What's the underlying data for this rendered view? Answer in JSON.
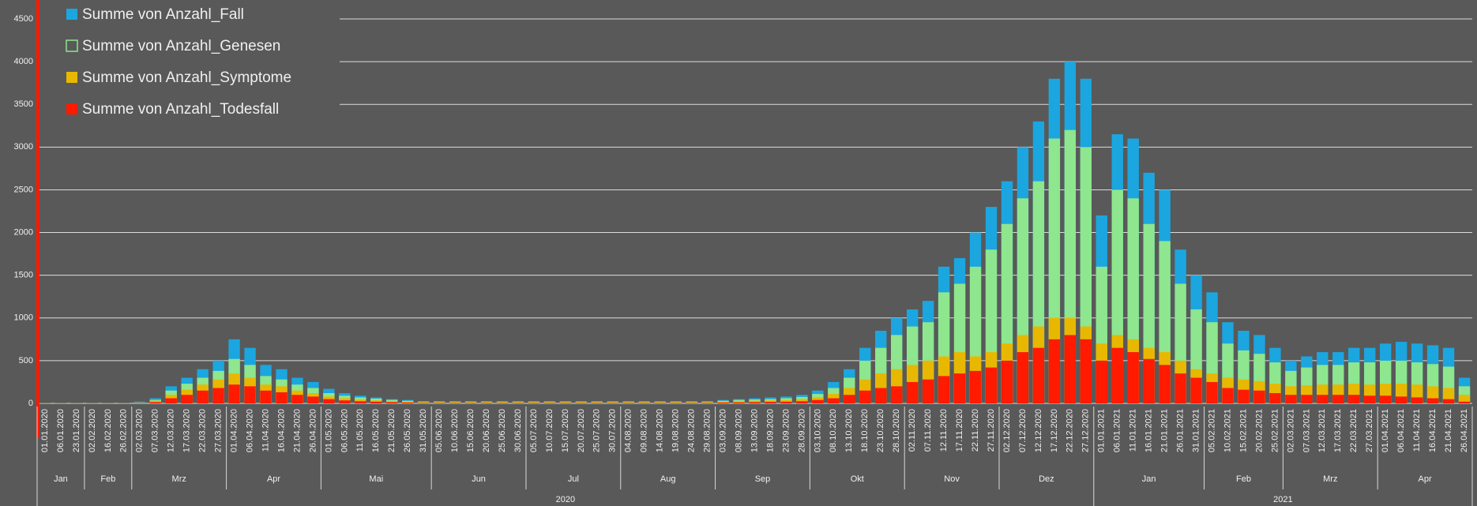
{
  "chart_data": {
    "type": "bar",
    "categories": [
      "01.01.2020",
      "06.01.2020",
      "23.01.2020",
      "02.02.2020",
      "16.02.2020",
      "26.02.2020",
      "02.03.2020",
      "07.03.2020",
      "12.03.2020",
      "17.03.2020",
      "22.03.2020",
      "27.03.2020",
      "01.04.2020",
      "06.04.2020",
      "11.04.2020",
      "16.04.2020",
      "21.04.2020",
      "26.04.2020",
      "01.05.2020",
      "06.05.2020",
      "11.05.2020",
      "16.05.2020",
      "21.05.2020",
      "26.05.2020",
      "31.05.2020",
      "05.06.2020",
      "10.06.2020",
      "15.06.2020",
      "20.06.2020",
      "25.06.2020",
      "30.06.2020",
      "05.07.2020",
      "10.07.2020",
      "15.07.2020",
      "20.07.2020",
      "25.07.2020",
      "30.07.2020",
      "04.08.2020",
      "09.08.2020",
      "14.08.2020",
      "19.08.2020",
      "24.08.2020",
      "29.08.2020",
      "03.09.2020",
      "08.09.2020",
      "13.09.2020",
      "18.09.2020",
      "23.09.2020",
      "28.09.2020",
      "03.10.2020",
      "08.10.2020",
      "13.10.2020",
      "18.10.2020",
      "23.10.2020",
      "28.10.2020",
      "02.11.2020",
      "07.11.2020",
      "12.11.2020",
      "17.11.2020",
      "22.11.2020",
      "27.11.2020",
      "02.12.2020",
      "07.12.2020",
      "12.12.2020",
      "17.12.2020",
      "22.12.2020",
      "27.12.2020",
      "01.01.2021",
      "06.01.2021",
      "11.01.2021",
      "16.01.2021",
      "21.01.2021",
      "26.01.2021",
      "31.01.2021",
      "05.02.2021",
      "10.02.2021",
      "15.02.2021",
      "20.02.2021",
      "25.02.2021",
      "02.03.2021",
      "07.03.2021",
      "12.03.2021",
      "17.03.2021",
      "22.03.2021",
      "27.03.2021",
      "01.04.2021",
      "06.04.2021",
      "11.04.2021",
      "16.04.2021",
      "21.04.2021",
      "26.04.2021"
    ],
    "months": [
      "Jan",
      "Feb",
      "Mrz",
      "Apr",
      "Mai",
      "Jun",
      "Jul",
      "Aug",
      "Sep",
      "Okt",
      "Nov",
      "Dez",
      "Jan",
      "Feb",
      "Mrz",
      "Apr"
    ],
    "years": [
      "2020",
      "2021"
    ],
    "series": [
      {
        "name": "Summe von Anzahl_Fall",
        "color": "#1ba6e0",
        "values": [
          5,
          5,
          5,
          5,
          5,
          5,
          20,
          60,
          200,
          300,
          400,
          500,
          750,
          650,
          450,
          400,
          300,
          250,
          170,
          120,
          90,
          70,
          50,
          40,
          25,
          25,
          25,
          25,
          25,
          25,
          25,
          25,
          25,
          25,
          25,
          25,
          25,
          25,
          25,
          25,
          25,
          25,
          25,
          40,
          50,
          60,
          70,
          80,
          100,
          150,
          250,
          400,
          650,
          850,
          1000,
          1100,
          1200,
          1600,
          1700,
          2000,
          2300,
          2600,
          3000,
          3300,
          3800,
          4000,
          3800,
          2200,
          3150,
          3100,
          2700,
          2500,
          1800,
          1500,
          1300,
          950,
          850,
          800,
          650,
          500,
          550,
          600,
          600,
          650,
          650,
          700,
          720,
          700,
          680,
          650,
          300
        ]
      },
      {
        "name": "Summe von Anzahl_Genesen",
        "color": "#8ee68e",
        "values": [
          3,
          3,
          3,
          3,
          3,
          3,
          10,
          40,
          150,
          230,
          300,
          380,
          520,
          450,
          320,
          280,
          220,
          180,
          120,
          90,
          70,
          55,
          40,
          30,
          20,
          20,
          20,
          20,
          20,
          20,
          20,
          20,
          20,
          20,
          20,
          20,
          20,
          20,
          20,
          20,
          20,
          20,
          20,
          30,
          40,
          45,
          50,
          60,
          75,
          110,
          180,
          300,
          500,
          650,
          800,
          900,
          950,
          1300,
          1400,
          1600,
          1800,
          2100,
          2400,
          2600,
          3100,
          3200,
          3000,
          1600,
          2500,
          2400,
          2100,
          1900,
          1400,
          1100,
          950,
          700,
          620,
          580,
          480,
          380,
          420,
          450,
          450,
          480,
          480,
          500,
          500,
          480,
          460,
          430,
          200
        ]
      },
      {
        "name": "Summe von Anzahl_Symptome",
        "color": "#e8b800",
        "values": [
          2,
          2,
          2,
          2,
          2,
          2,
          8,
          30,
          100,
          160,
          220,
          280,
          350,
          300,
          220,
          200,
          150,
          120,
          80,
          60,
          45,
          35,
          25,
          20,
          12,
          12,
          12,
          12,
          12,
          12,
          12,
          12,
          12,
          12,
          12,
          12,
          12,
          12,
          12,
          12,
          12,
          12,
          12,
          20,
          25,
          30,
          35,
          40,
          50,
          70,
          110,
          180,
          280,
          350,
          400,
          450,
          500,
          550,
          600,
          550,
          600,
          700,
          800,
          900,
          1000,
          1000,
          900,
          700,
          800,
          750,
          650,
          600,
          500,
          400,
          350,
          300,
          280,
          260,
          230,
          200,
          210,
          220,
          220,
          230,
          220,
          230,
          230,
          220,
          200,
          180,
          100
        ]
      },
      {
        "name": "Summe von Anzahl_Todesfall",
        "color": "#ff1a00",
        "values": [
          1,
          1,
          1,
          1,
          1,
          1,
          4,
          15,
          60,
          100,
          150,
          180,
          220,
          200,
          150,
          130,
          100,
          80,
          50,
          35,
          25,
          20,
          15,
          10,
          6,
          6,
          6,
          6,
          6,
          6,
          6,
          6,
          6,
          6,
          6,
          6,
          6,
          6,
          6,
          6,
          6,
          6,
          6,
          10,
          12,
          15,
          18,
          20,
          25,
          40,
          60,
          100,
          150,
          180,
          200,
          250,
          280,
          320,
          350,
          380,
          420,
          500,
          600,
          650,
          750,
          800,
          750,
          500,
          650,
          600,
          520,
          450,
          350,
          300,
          250,
          180,
          160,
          150,
          120,
          100,
          100,
          100,
          100,
          100,
          90,
          90,
          80,
          70,
          60,
          50,
          20
        ]
      }
    ],
    "ylim": [
      0,
      4500
    ],
    "yticks": [
      0,
      500,
      1000,
      1500,
      2000,
      2500,
      3000,
      3500,
      4000,
      4500
    ],
    "grid": true,
    "legend": "top-left"
  }
}
